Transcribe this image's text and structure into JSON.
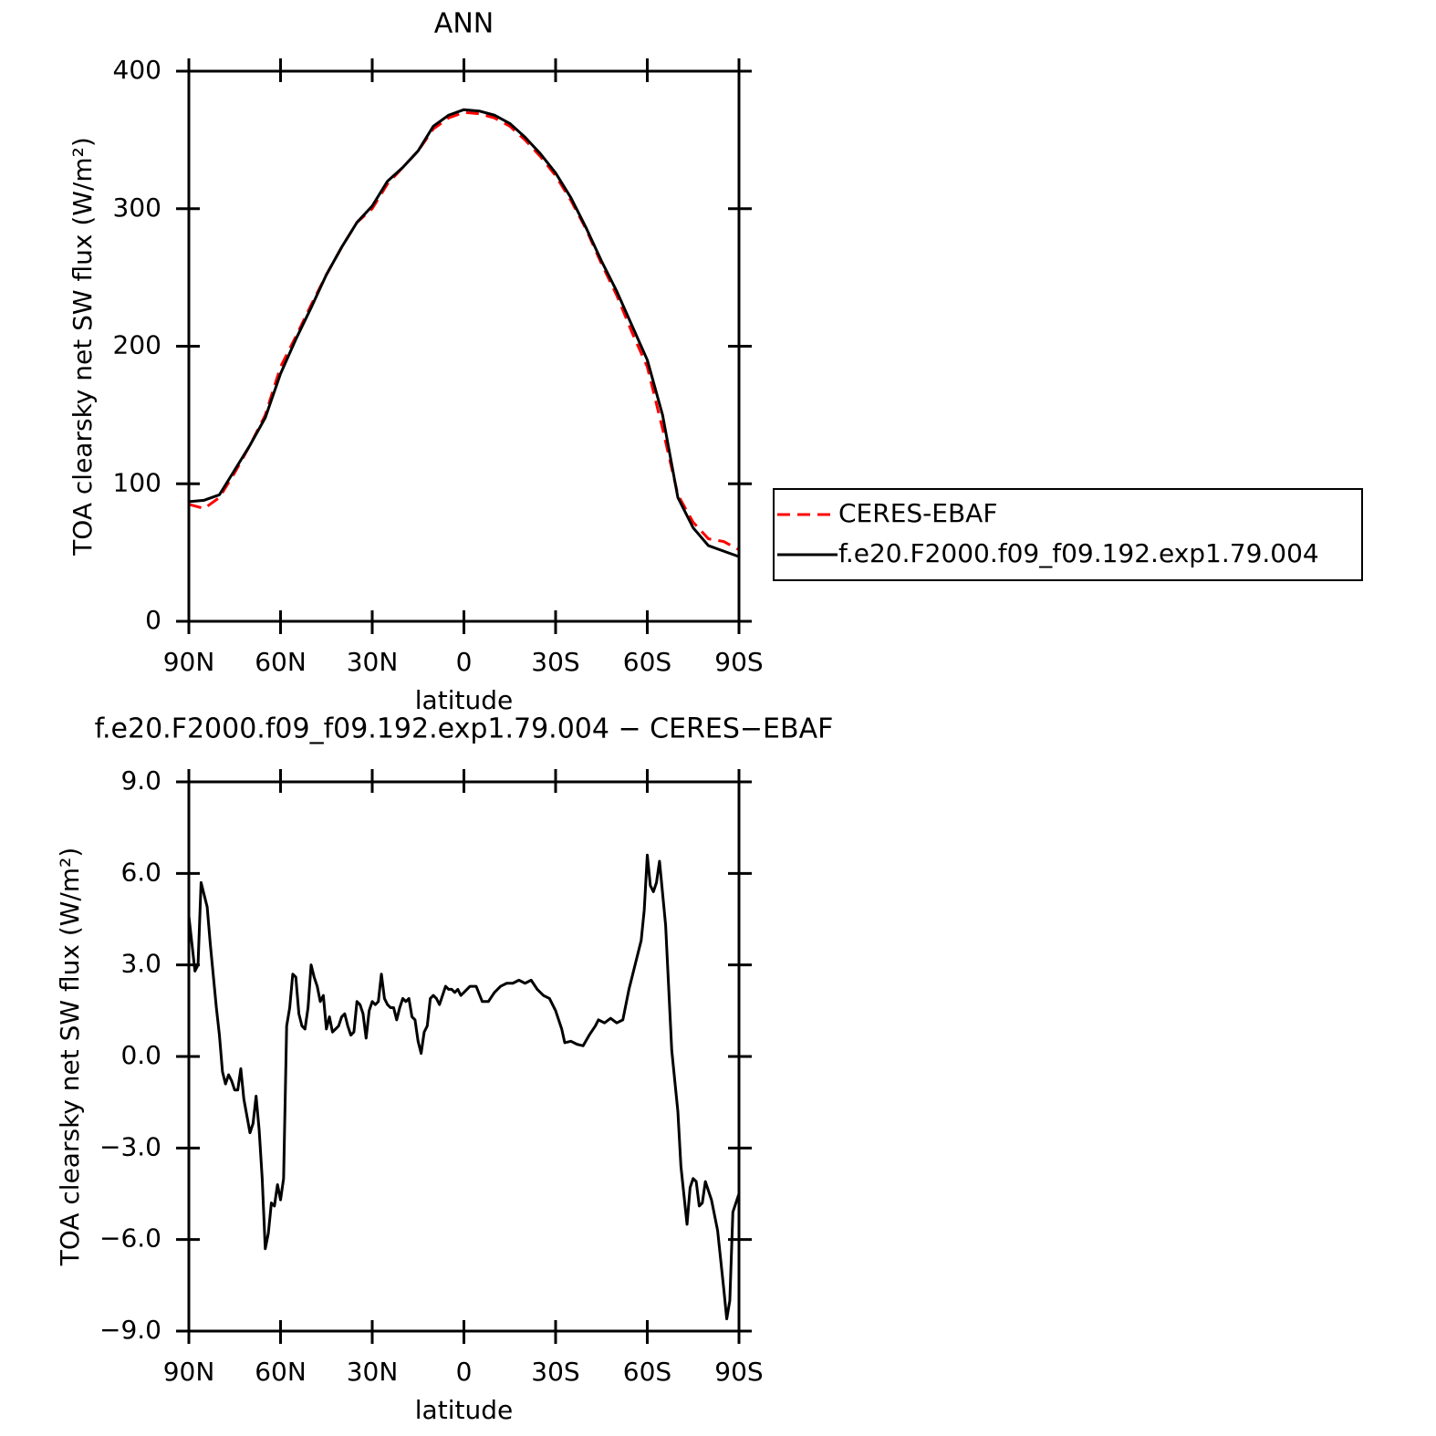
{
  "chart_data": [
    {
      "type": "line",
      "title": "ANN",
      "xlabel": "latitude",
      "ylabel": "TOA clearsky net SW flux (W/m²)",
      "xlim": [
        90,
        -90
      ],
      "ylim": [
        0,
        400
      ],
      "xticks": [
        {
          "value": 90,
          "label": "90N"
        },
        {
          "value": 60,
          "label": "60N"
        },
        {
          "value": 30,
          "label": "30N"
        },
        0,
        {
          "value": -30,
          "label": "30S"
        },
        {
          "value": -60,
          "label": "60S"
        },
        {
          "value": -90,
          "label": "90S"
        }
      ],
      "yticks": [
        0,
        100,
        200,
        300,
        400
      ],
      "legend": "right",
      "x": [
        90,
        85,
        80,
        75,
        70,
        65,
        60,
        55,
        50,
        45,
        40,
        35,
        30,
        25,
        20,
        15,
        10,
        5,
        0,
        -5,
        -10,
        -15,
        -20,
        -25,
        -30,
        -35,
        -40,
        -45,
        -50,
        -55,
        -60,
        -65,
        -70,
        -75,
        -80,
        -85,
        -90
      ],
      "series": [
        {
          "name": "CERES-EBAF",
          "color": "#ff0000",
          "linestyle": "dashed",
          "values": [
            85,
            82,
            90,
            108,
            128,
            150,
            185,
            207,
            230,
            252,
            272,
            290,
            300,
            318,
            330,
            342,
            358,
            366,
            370,
            369,
            366,
            360,
            350,
            338,
            324,
            306,
            285,
            260,
            237,
            210,
            185,
            140,
            92,
            72,
            60,
            58,
            52
          ]
        },
        {
          "name": "f.e20.F2000.f09_f09.192.exp1.79.004",
          "color": "#000000",
          "linestyle": "solid",
          "values": [
            87,
            88,
            92,
            110,
            128,
            148,
            180,
            205,
            228,
            252,
            272,
            290,
            302,
            320,
            330,
            342,
            360,
            368,
            372,
            371,
            368,
            362,
            352,
            340,
            326,
            308,
            286,
            262,
            240,
            215,
            190,
            150,
            90,
            68,
            55,
            51,
            47
          ]
        }
      ]
    },
    {
      "type": "line",
      "title": "f.e20.F2000.f09_f09.192.exp1.79.004 − CERES−EBAF",
      "xlabel": "latitude",
      "ylabel": "TOA clearsky net SW flux (W/m²)",
      "xlim": [
        90,
        -90
      ],
      "ylim": [
        -9,
        9
      ],
      "xticks": [
        {
          "value": 90,
          "label": "90N"
        },
        {
          "value": 60,
          "label": "60N"
        },
        {
          "value": 30,
          "label": "30N"
        },
        0,
        {
          "value": -30,
          "label": "30S"
        },
        {
          "value": -60,
          "label": "60S"
        },
        {
          "value": -90,
          "label": "90S"
        }
      ],
      "yticks": [
        {
          "value": -9,
          "label": "−9.0"
        },
        {
          "value": -6,
          "label": "−6.0"
        },
        {
          "value": -3,
          "label": "−3.0"
        },
        {
          "value": 0,
          "label": "0.0"
        },
        {
          "value": 3,
          "label": "3.0"
        },
        {
          "value": 6,
          "label": "6.0"
        },
        {
          "value": 9,
          "label": "9.0"
        }
      ],
      "x": [
        90,
        88,
        87,
        86,
        84,
        83,
        81,
        80,
        79,
        78,
        77,
        76,
        75,
        74,
        73,
        72,
        70,
        69,
        68,
        67,
        66,
        65,
        64,
        63,
        62,
        61,
        60,
        59,
        58,
        57,
        56,
        55,
        54,
        53,
        52,
        51,
        50,
        49,
        48,
        47,
        46,
        45,
        44,
        43,
        42,
        41,
        40,
        39,
        38,
        37,
        36,
        35,
        34,
        33,
        32,
        31,
        30,
        29,
        28,
        27,
        26,
        25,
        24,
        23,
        22,
        21,
        20,
        19,
        18,
        17,
        16,
        15,
        14,
        13,
        12,
        11,
        10,
        9,
        8,
        7,
        6,
        5,
        4,
        3,
        2,
        1,
        0,
        -2,
        -4,
        -6,
        -8,
        -10,
        -12,
        -14,
        -16,
        -18,
        -20,
        -22,
        -24,
        -26,
        -28,
        -30,
        -32,
        -33,
        -35,
        -37,
        -39,
        -41,
        -43,
        -44,
        -46,
        -48,
        -50,
        -52,
        -54,
        -56,
        -58,
        -59,
        -60,
        -61,
        -62,
        -63,
        -64,
        -66,
        -68,
        -70,
        -71,
        -73,
        -74,
        -75,
        -76,
        -77,
        -78,
        -79,
        -81,
        -83,
        -85,
        -86,
        -87,
        -88,
        -90
      ],
      "series": [
        {
          "color": "#000000",
          "linestyle": "solid",
          "values": [
            4.6,
            2.8,
            3.0,
            5.7,
            4.9,
            3.7,
            1.6,
            0.7,
            -0.5,
            -0.9,
            -0.6,
            -0.8,
            -1.1,
            -1.1,
            -0.4,
            -1.4,
            -2.5,
            -2.2,
            -1.3,
            -2.4,
            -4.0,
            -6.3,
            -5.8,
            -4.8,
            -4.9,
            -4.2,
            -4.7,
            -4.0,
            1.0,
            1.6,
            2.7,
            2.6,
            1.4,
            1.0,
            0.9,
            1.6,
            3.0,
            2.6,
            2.3,
            1.8,
            2.0,
            0.9,
            1.3,
            0.8,
            0.9,
            1.0,
            1.3,
            1.4,
            1.0,
            0.7,
            0.8,
            1.8,
            1.7,
            1.4,
            0.6,
            1.5,
            1.8,
            1.7,
            1.8,
            2.7,
            1.9,
            1.7,
            1.6,
            1.6,
            1.2,
            1.6,
            1.9,
            1.8,
            1.9,
            1.3,
            1.2,
            0.5,
            0.1,
            0.8,
            1.0,
            1.9,
            2.0,
            1.9,
            1.7,
            2.0,
            2.3,
            2.2,
            2.2,
            2.1,
            2.2,
            2.0,
            2.1,
            2.3,
            2.3,
            1.8,
            1.8,
            2.1,
            2.3,
            2.4,
            2.4,
            2.5,
            2.4,
            2.5,
            2.2,
            2.0,
            1.9,
            1.5,
            0.9,
            0.45,
            0.5,
            0.4,
            0.35,
            0.7,
            1.0,
            1.2,
            1.1,
            1.25,
            1.1,
            1.2,
            2.2,
            3.0,
            3.8,
            4.8,
            6.6,
            5.6,
            5.4,
            5.7,
            6.4,
            4.3,
            0.2,
            -1.8,
            -3.6,
            -5.5,
            -4.3,
            -4.0,
            -4.1,
            -4.9,
            -4.8,
            -4.1,
            -4.7,
            -5.7,
            -7.6,
            -8.6,
            -8.0,
            -5.1,
            -4.5
          ]
        }
      ]
    }
  ]
}
